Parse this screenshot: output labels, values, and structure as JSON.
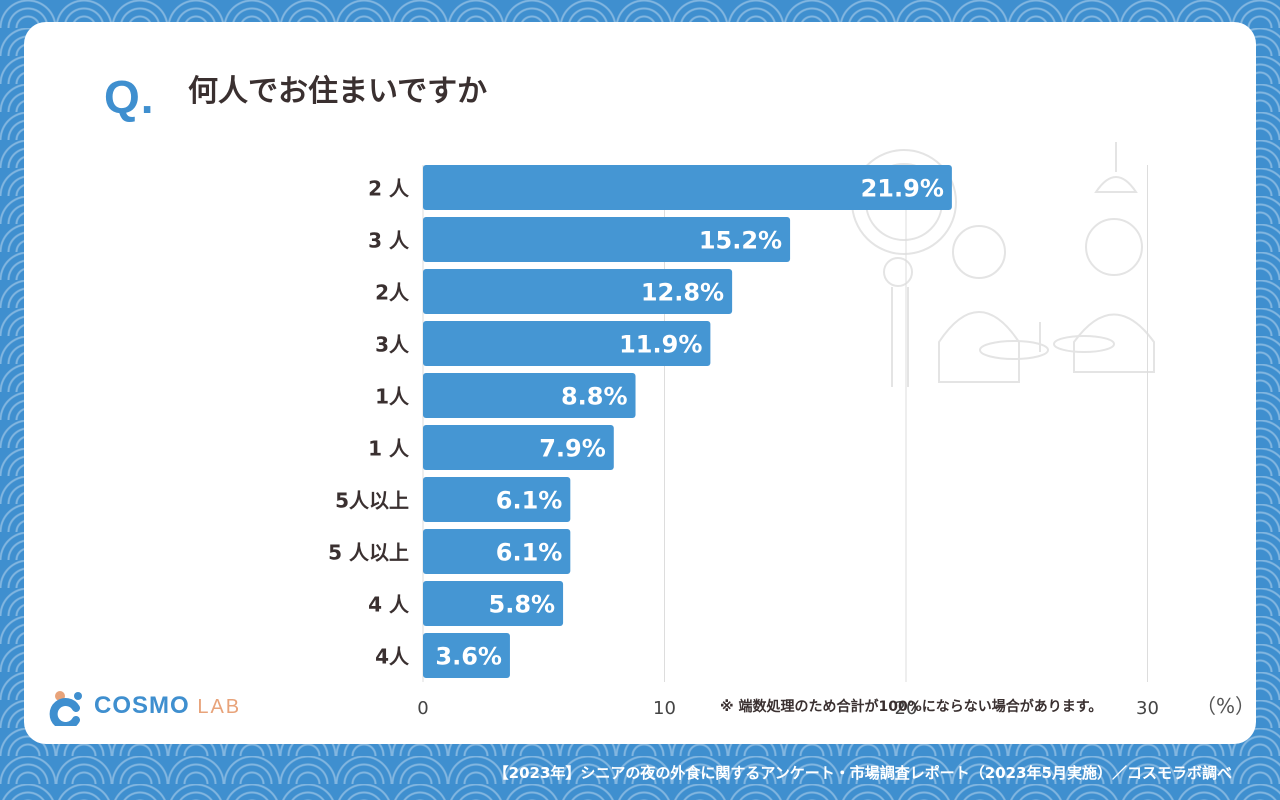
{
  "header": {
    "q_mark": "Q.",
    "question": "何人でお住まいですか"
  },
  "chart_data": {
    "type": "bar",
    "orientation": "horizontal",
    "categories": [
      "2 人",
      "3 人",
      "2人",
      "3人",
      "1人",
      "1 人",
      "5人以上",
      "5 人以上",
      "4 人",
      "4人"
    ],
    "values": [
      21.9,
      15.2,
      12.8,
      11.9,
      8.8,
      7.9,
      6.1,
      6.1,
      5.8,
      3.6
    ],
    "value_labels": [
      "21.9%",
      "15.2%",
      "12.8%",
      "11.9%",
      "8.8%",
      "7.9%",
      "6.1%",
      "6.1%",
      "5.8%",
      "3.6%"
    ],
    "x_ticks": [
      "0",
      "10",
      "20",
      "30"
    ],
    "xlim": [
      0,
      30
    ],
    "grid": true,
    "bar_color": "#4596d3"
  },
  "note": "※ 端数処理のため合計が100%にならない場合があります。",
  "unit": "（%）",
  "logo": {
    "main": "COSMO",
    "sub": "LAB"
  },
  "footer": "【2023年】シニアの夜の外食に関するアンケート・市場調査レポート（2023年5月実施）／コスモラボ調べ",
  "colors": {
    "accent": "#3f8fcf",
    "logo_orange": "#e8a37a",
    "text": "#3a3030"
  }
}
